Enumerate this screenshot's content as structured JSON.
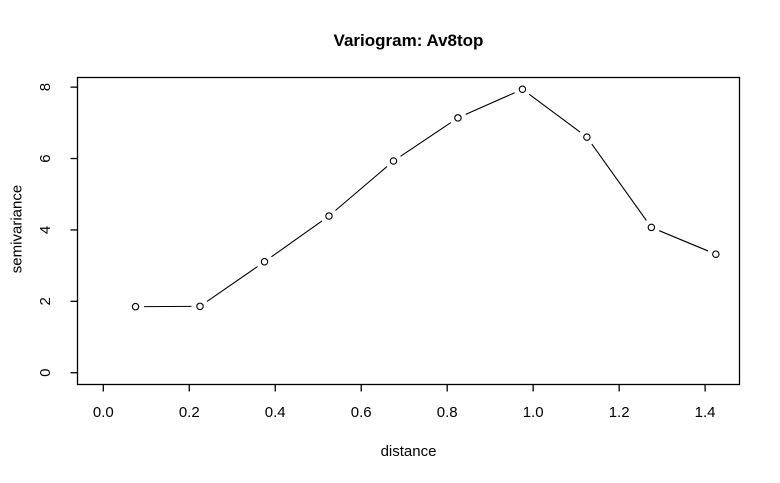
{
  "window": {
    "background": "#ffffff",
    "text_color": "#000000"
  },
  "chart_data": {
    "type": "line",
    "style": "r-base-type-b-scatter-with-gapped-lines",
    "title": "Variogram: Av8top",
    "xlabel": "distance",
    "ylabel": "semivariance",
    "x": [
      0.075,
      0.225,
      0.375,
      0.525,
      0.675,
      0.825,
      0.975,
      1.125,
      1.275,
      1.425
    ],
    "y": [
      1.85,
      1.86,
      3.11,
      4.39,
      5.93,
      7.14,
      7.94,
      6.6,
      4.07,
      3.32
    ],
    "x_ticks": [
      0.0,
      0.2,
      0.4,
      0.6,
      0.8,
      1.0,
      1.2,
      1.4
    ],
    "x_tick_labels": [
      "0.0",
      "0.2",
      "0.4",
      "0.6",
      "0.8",
      "1.0",
      "1.2",
      "1.4"
    ],
    "y_ticks": [
      0,
      2,
      4,
      6,
      8
    ],
    "y_tick_labels": [
      "0",
      "2",
      "4",
      "6",
      "8"
    ],
    "xlim": [
      -0.06,
      1.48
    ],
    "ylim": [
      -0.33,
      8.27
    ],
    "grid": false,
    "marker": "open-circle",
    "marker_fill": "#ffffff",
    "line_color": "#000000",
    "axis_color": "#000000"
  }
}
